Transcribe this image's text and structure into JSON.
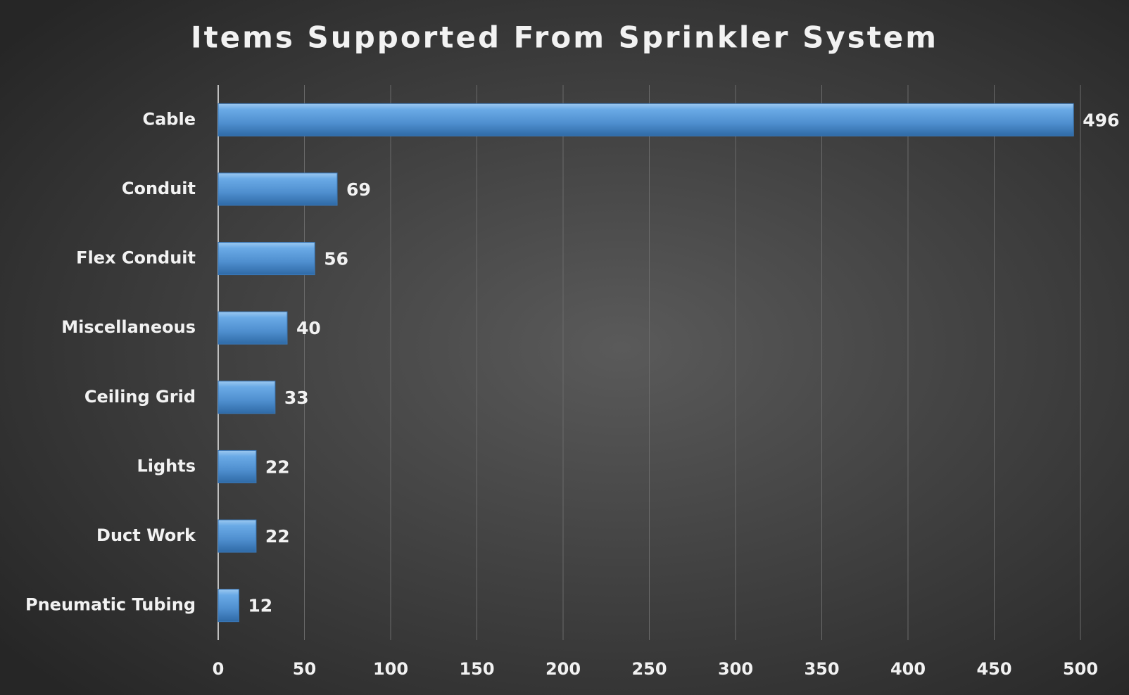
{
  "chart_data": {
    "type": "bar",
    "orientation": "horizontal",
    "title": "Items Supported From Sprinkler System",
    "categories": [
      "Cable",
      "Conduit",
      "Flex Conduit",
      "Miscellaneous",
      "Ceiling Grid",
      "Lights",
      "Duct Work",
      "Pneumatic Tubing"
    ],
    "values": [
      496,
      69,
      56,
      40,
      33,
      22,
      22,
      12
    ],
    "color": "#5b9bd5",
    "xlim": [
      0,
      500
    ],
    "xticks": [
      0,
      50,
      100,
      150,
      200,
      250,
      300,
      350,
      400,
      450,
      500
    ],
    "grid": true
  }
}
